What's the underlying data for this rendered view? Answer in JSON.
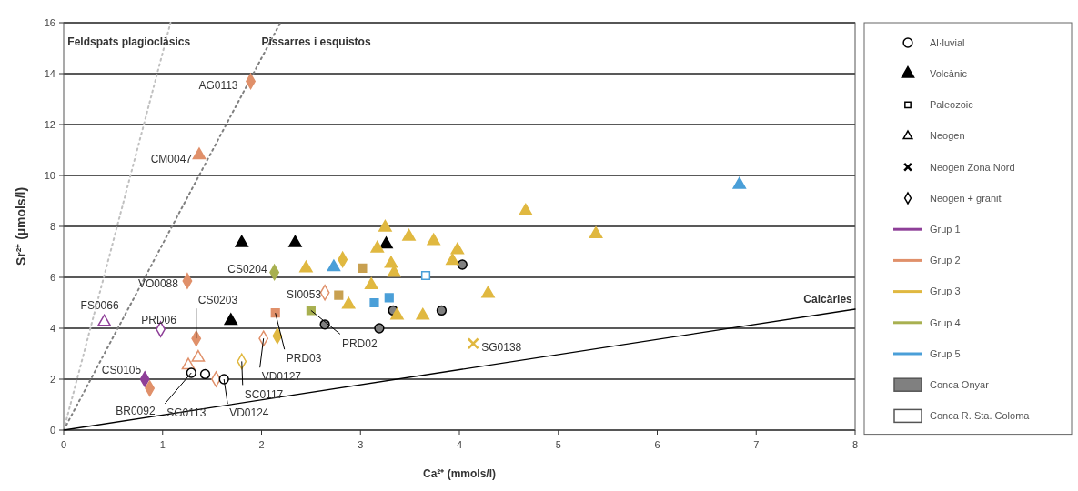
{
  "chart_data": {
    "type": "scatter",
    "xlabel": "Ca²⁺ (mmols/l)",
    "ylabel": "Sr²⁺ (µmols/l)",
    "xlim": [
      0,
      8
    ],
    "ylim": [
      0,
      16
    ],
    "xticks": [
      0,
      1,
      2,
      3,
      4,
      5,
      6,
      7,
      8
    ],
    "yticks": [
      0,
      2,
      4,
      6,
      8,
      10,
      12,
      14,
      16
    ],
    "grid": "y",
    "legend": "right",
    "series": [
      {
        "name": "Feldspats plagioclàsics",
        "type": "line",
        "color": "#c0c0c0",
        "line_style": "dotted",
        "marker": "none",
        "x": [
          0,
          1.08
        ],
        "values": [
          0,
          16
        ]
      },
      {
        "name": "Pissarres i esquistos",
        "type": "line",
        "color": "#808080",
        "line_style": "dotted",
        "marker": "none",
        "x": [
          0,
          2.19
        ],
        "values": [
          0,
          16
        ]
      },
      {
        "name": "Calcàries",
        "type": "line",
        "color": "#000000",
        "line_style": "solid",
        "marker": "none",
        "x": [
          0,
          8
        ],
        "values": [
          0,
          4.75
        ]
      },
      {
        "name": "Grup 1",
        "color": "#8e3f98",
        "marker": "triangle",
        "x": [
          0.41
        ],
        "values": [
          4.25
        ]
      },
      {
        "color": "#8e3f98",
        "marker": "diamond",
        "x": [
          0.98
        ],
        "values": [
          3.96
        ]
      },
      {
        "color": "#8e3f98",
        "marker": "diamond",
        "x": [
          0.82
        ],
        "values": [
          2.0
        ]
      },
      {
        "name": "Grup 2",
        "color": "#e0906a",
        "marker": "diamond",
        "x": [
          1.89,
          1.25,
          0.87,
          1.34
        ],
        "values": [
          13.7,
          5.86,
          1.64,
          3.6
        ]
      },
      {
        "color": "#e0906a",
        "marker": "triangle",
        "x": [
          1.37
        ],
        "values": [
          10.8
        ]
      },
      {
        "color": "#e0906a",
        "marker": "square",
        "x": [
          2.14
        ],
        "values": [
          4.6
        ]
      },
      {
        "color": "#e0906a",
        "marker": "diamond",
        "x": [
          2.64,
          2.02,
          1.54
        ],
        "values": [
          5.4,
          3.6,
          2.0
        ]
      },
      {
        "color": "#e0906a",
        "marker": "triangle",
        "x": [
          1.26,
          1.36
        ],
        "values": [
          2.55,
          2.85
        ]
      },
      {
        "name": "Volcànic",
        "color": "#000000",
        "marker": "triangle",
        "x": [
          1.8,
          2.34,
          1.69,
          3.26
        ],
        "values": [
          7.35,
          7.35,
          4.3,
          7.3
        ]
      },
      {
        "name": "Al·luvial",
        "color": "#000000",
        "marker": "circle",
        "x": [
          1.29,
          1.43,
          1.62
        ],
        "values": [
          2.25,
          2.2,
          2.0
        ]
      },
      {
        "color": "#808080",
        "marker": "circle",
        "x": [
          2.64,
          3.19,
          3.33,
          3.82,
          4.03
        ],
        "values": [
          4.15,
          4.0,
          4.7,
          4.7,
          6.5
        ]
      },
      {
        "name": "Grup 3",
        "color": "#e0b840",
        "marker": "triangle",
        "x": [
          2.45,
          3.25,
          3.49,
          3.74,
          3.17,
          3.98,
          3.93,
          3.31,
          3.34,
          3.11,
          2.88,
          3.37,
          3.63,
          4.29,
          4.67,
          5.38
        ],
        "values": [
          6.36,
          7.96,
          7.6,
          7.43,
          7.14,
          7.07,
          6.65,
          6.54,
          6.18,
          5.7,
          4.93,
          4.5,
          4.5,
          5.36,
          8.6,
          7.7
        ]
      },
      {
        "color": "#e0b840",
        "marker": "diamond",
        "x": [
          1.8
        ],
        "values": [
          2.7
        ]
      },
      {
        "color": "#e0b840",
        "marker": "diamond",
        "x": [
          2.16,
          2.82
        ],
        "values": [
          3.7,
          6.7
        ]
      },
      {
        "color": "#c8a050",
        "marker": "square",
        "x": [
          3.02,
          2.78
        ],
        "values": [
          6.36,
          5.3
        ]
      },
      {
        "color": "#e0b840",
        "marker": "cross",
        "x": [
          4.14
        ],
        "values": [
          3.4
        ]
      },
      {
        "name": "Grup 4",
        "color": "#a8b050",
        "marker": "diamond",
        "x": [
          2.13
        ],
        "values": [
          6.2
        ]
      },
      {
        "color": "#a8b050",
        "marker": "square",
        "x": [
          2.5
        ],
        "values": [
          4.7
        ]
      },
      {
        "name": "Grup 5",
        "color": "#4a9fd8",
        "marker": "triangle",
        "x": [
          2.73,
          6.83
        ],
        "values": [
          6.4,
          9.64
        ]
      },
      {
        "color": "#4a9fd8",
        "marker": "square",
        "x": [
          3.14,
          3.29
        ],
        "values": [
          5.0,
          5.2
        ]
      },
      {
        "color": "#4a9fd8",
        "marker": "square",
        "x": [
          3.66
        ],
        "values": [
          6.07
        ]
      }
    ],
    "annotations": [
      {
        "text": "AG0113",
        "x": 1.89,
        "y": 13.7
      },
      {
        "text": "CM0047",
        "x": 1.37,
        "y": 10.8
      },
      {
        "text": "VO0088",
        "x": 1.25,
        "y": 5.86
      },
      {
        "text": "FS0066",
        "x": 0.41,
        "y": 4.25
      },
      {
        "text": "PRD06",
        "x": 0.98,
        "y": 3.96
      },
      {
        "text": "CS0105",
        "x": 0.82,
        "y": 2.0
      },
      {
        "text": "BR0092",
        "x": 0.87,
        "y": 1.64
      },
      {
        "text": "CS0203",
        "x": 1.34,
        "y": 3.6
      },
      {
        "text": "CS0204",
        "x": 2.13,
        "y": 6.2
      },
      {
        "text": "SI0053",
        "x": 2.64,
        "y": 5.4
      },
      {
        "text": "PRD03",
        "x": 2.14,
        "y": 4.6
      },
      {
        "text": "PRD02",
        "x": 2.5,
        "y": 4.7
      },
      {
        "text": "VD0127",
        "x": 2.02,
        "y": 3.6
      },
      {
        "text": "SC0117",
        "x": 1.8,
        "y": 2.7
      },
      {
        "text": "SG0113",
        "x": 1.29,
        "y": 2.25
      },
      {
        "text": "VD0124",
        "x": 1.62,
        "y": 2.0
      },
      {
        "text": "SG0138",
        "x": 4.14,
        "y": 3.4
      },
      "Paleozoic",
      "Neogen",
      "Neogen Zona Nord",
      "Neogen + granit",
      "Conca Onyar",
      "Conca R. Sta. Coloma"
    ]
  }
}
